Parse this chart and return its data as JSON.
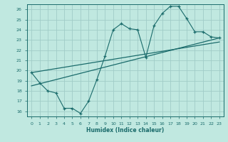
{
  "title": "",
  "xlabel": "Humidex (Indice chaleur)",
  "background_color": "#c0e8e0",
  "grid_color": "#a0ccc8",
  "line_color": "#1a6b6b",
  "xlim": [
    -0.5,
    23.5
  ],
  "ylim": [
    15.5,
    26.5
  ],
  "xticks": [
    0,
    1,
    2,
    3,
    4,
    5,
    6,
    7,
    8,
    9,
    10,
    11,
    12,
    13,
    14,
    15,
    16,
    17,
    18,
    19,
    20,
    21,
    22,
    23
  ],
  "yticks": [
    16,
    17,
    18,
    19,
    20,
    21,
    22,
    23,
    24,
    25,
    26
  ],
  "line1_x": [
    0,
    1,
    2,
    3,
    4,
    5,
    6,
    7,
    8,
    9,
    10,
    11,
    12,
    13,
    14,
    15,
    16,
    17,
    18,
    19,
    20,
    21,
    22,
    23
  ],
  "line1_y": [
    19.8,
    18.8,
    18.0,
    17.8,
    16.3,
    16.3,
    15.8,
    17.0,
    19.1,
    21.4,
    24.0,
    24.6,
    24.1,
    24.0,
    21.3,
    24.4,
    25.6,
    26.3,
    26.3,
    25.1,
    23.8,
    23.8,
    23.3,
    23.2
  ],
  "line2_x": [
    0,
    23
  ],
  "line2_y": [
    18.5,
    23.2
  ],
  "line3_x": [
    0,
    23
  ],
  "line3_y": [
    19.8,
    22.8
  ]
}
